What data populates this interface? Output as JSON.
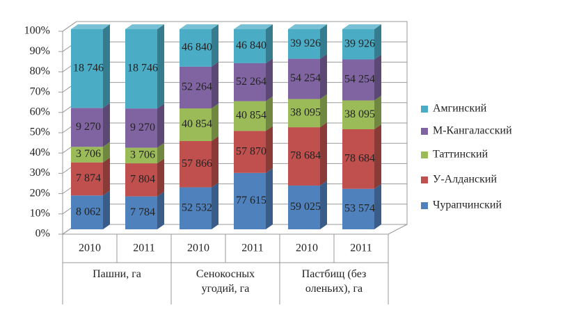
{
  "chart_data": {
    "type": "bar",
    "stacking": "percent",
    "legend": "right",
    "category_groups": [
      {
        "name": "Пашни, га",
        "categories": [
          "2010",
          "2011"
        ]
      },
      {
        "name": "Сенокосных угодий, га",
        "categories": [
          "2010",
          "2011"
        ]
      },
      {
        "name": "Пастбищ (без оленьих), га",
        "categories": [
          "2010",
          "2011"
        ]
      }
    ],
    "series": [
      {
        "name": "Чурапчинский",
        "color": "#4f81bd",
        "values": [
          8062,
          7784,
          52532,
          77615,
          59025,
          53574
        ],
        "value_labels": [
          "8 062",
          "7 784",
          "52 532",
          "77 615",
          "59 025",
          "53 574"
        ]
      },
      {
        "name": "У-Алданский",
        "color": "#c0504d",
        "values": [
          7874,
          7804,
          57866,
          57870,
          78684,
          78684
        ],
        "value_labels": [
          "7 874",
          "7 804",
          "57 866",
          "57 870",
          "78 684",
          "78 684"
        ]
      },
      {
        "name": "Таттинский",
        "color": "#9bbb59",
        "values": [
          3706,
          3706,
          40854,
          40854,
          38095,
          38095
        ],
        "value_labels": [
          "3 706",
          "3 706",
          "40 854",
          "40 854",
          "38 095",
          "38 095"
        ]
      },
      {
        "name": "М-Кангаласский",
        "color": "#8064a2",
        "values": [
          9270,
          9270,
          52264,
          52264,
          54254,
          54254
        ],
        "value_labels": [
          "9 270",
          "9 270",
          "52 264",
          "52 264",
          "54 254",
          "54 254"
        ]
      },
      {
        "name": "Амгинский",
        "color": "#4bacc6",
        "values": [
          18746,
          18746,
          46840,
          46840,
          39926,
          39926
        ],
        "value_labels": [
          "18 746",
          "18 746",
          "46 840",
          "46 840",
          "39 926",
          "39 926"
        ]
      }
    ],
    "ylim": [
      0,
      100
    ],
    "yticks": [
      {
        "value": 0,
        "label": "0%"
      },
      {
        "value": 10,
        "label": "10%"
      },
      {
        "value": 20,
        "label": "20%"
      },
      {
        "value": 30,
        "label": "30%"
      },
      {
        "value": 40,
        "label": "40%"
      },
      {
        "value": 50,
        "label": "50%"
      },
      {
        "value": 60,
        "label": "60%"
      },
      {
        "value": 70,
        "label": "70%"
      },
      {
        "value": 80,
        "label": "80%"
      },
      {
        "value": 90,
        "label": "90%"
      },
      {
        "value": 100,
        "label": "100%"
      }
    ],
    "grid": true
  }
}
